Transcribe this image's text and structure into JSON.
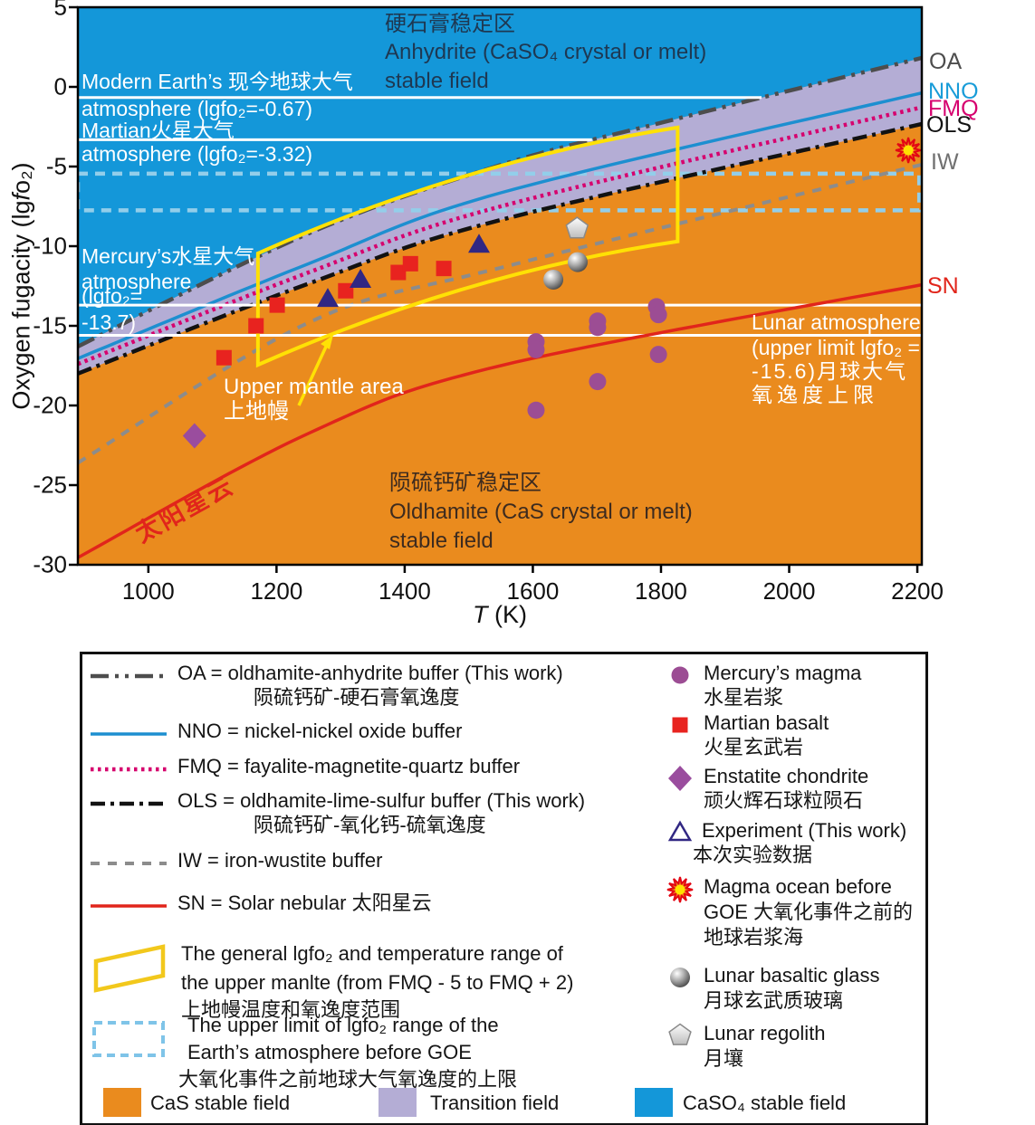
{
  "chart_data": {
    "type": "line",
    "title": "",
    "xlabel": "T",
    "xlabel_unit": "(K)",
    "ylabel_pre": "Oxygen fugacity (lg",
    "ylabel_f": "f",
    "ylabel_post": "o₂)",
    "xlim": [
      890,
      2207
    ],
    "ylim": [
      -30,
      5
    ],
    "x_ticks": [
      1000,
      1200,
      1400,
      1600,
      1800,
      2000,
      2200
    ],
    "y_ticks": [
      5,
      0,
      -5,
      -10,
      -15,
      -20,
      -25,
      -30
    ],
    "fields": [
      {
        "id": "caso4",
        "label": "CaSO₄ stable field",
        "color": "#1497D9"
      },
      {
        "id": "transition",
        "label": "Transition field",
        "color": "#B4ADD5"
      },
      {
        "id": "cas",
        "label": "CaS stable field",
        "color": "#EA8B1E"
      }
    ],
    "buffer_curves": [
      {
        "id": "OA",
        "label": "OA",
        "name": "oldhamite-anhydrite buffer",
        "color": "#4D4D4D",
        "width": 4.5,
        "dash": "20 7 4 7 4 7",
        "points": [
          [
            890,
            -16.3
          ],
          [
            1250,
            -9.2
          ],
          [
            1550,
            -4.9
          ],
          [
            1820,
            -2.05
          ],
          [
            2210,
            1.85
          ]
        ]
      },
      {
        "id": "NNO",
        "label": "NNO",
        "name": "nickel-nickel oxide buffer",
        "color": "#1D8FD0",
        "width": 3.5,
        "dash": "",
        "points": [
          [
            890,
            -17.05
          ],
          [
            1250,
            -11.1
          ],
          [
            1550,
            -6.65
          ],
          [
            2210,
            -0.35
          ]
        ]
      },
      {
        "id": "FMQ",
        "label": "FMQ",
        "name": "fayalite-magnetite-quartz buffer",
        "color": "#D6006E",
        "width": 4.5,
        "dash": "3.5 4.5",
        "points": [
          [
            890,
            -17.4
          ],
          [
            1250,
            -11.65
          ],
          [
            1550,
            -7.5
          ],
          [
            2210,
            -1.25
          ]
        ]
      },
      {
        "id": "OLS",
        "label": "OLS",
        "name": "oldhamite-lime-sulfur buffer",
        "color": "#121212",
        "width": 4.5,
        "dash": "16 6 4 6",
        "points": [
          [
            890,
            -18.0
          ],
          [
            1250,
            -12.35
          ],
          [
            1550,
            -8.35
          ],
          [
            2210,
            -2.3
          ]
        ]
      },
      {
        "id": "IW",
        "label": "IW",
        "name": "iron-wustite buffer",
        "color": "#8C8C8C",
        "width": 4,
        "dash": "10 9",
        "points": [
          [
            890,
            -23.6
          ],
          [
            1250,
            -14.8
          ],
          [
            1550,
            -11.35
          ],
          [
            2210,
            -4.85
          ]
        ]
      },
      {
        "id": "SN",
        "label": "SN",
        "name": "Solar nebular",
        "color": "#E1251B",
        "width": 3.5,
        "dash": "",
        "points": [
          [
            890,
            -29.55
          ],
          [
            1250,
            -21.75
          ],
          [
            1550,
            -17.5
          ],
          [
            2210,
            -12.4
          ]
        ]
      }
    ],
    "atmosphere_lines": [
      {
        "id": "modern",
        "lgfo2": -0.67,
        "clip_to": "OA"
      },
      {
        "id": "martian",
        "lgfo2": -3.32,
        "clip_to": "OA"
      },
      {
        "id": "mercury",
        "lgfo2": -13.7,
        "clip_to": ""
      },
      {
        "id": "lunar",
        "lgfo2": -15.6,
        "clip_to": ""
      }
    ],
    "goe_band": {
      "v_top": -5.45,
      "v_bottom": -7.75,
      "T_right": 2203,
      "color": "#93CEEA"
    },
    "upper_mantle_polygon": {
      "corners": [
        [
          1171,
          -10.45
        ],
        [
          1826,
          -2.55
        ],
        [
          1826,
          -9.7
        ],
        [
          1171,
          -17.45
        ]
      ],
      "color": "#FFE104"
    },
    "data_series": [
      {
        "id": "mercury_magma",
        "marker": "circle",
        "color": "#9C4D94",
        "points": [
          [
            1793,
            -13.8
          ],
          [
            1796,
            -14.3
          ],
          [
            1701,
            -14.7
          ],
          [
            1701,
            -15.1
          ],
          [
            1605,
            -16.0
          ],
          [
            1605,
            -16.5
          ],
          [
            1796,
            -16.8
          ],
          [
            1701,
            -18.5
          ],
          [
            1605,
            -20.3
          ]
        ]
      },
      {
        "id": "martian_basalt",
        "marker": "square",
        "color": "#E8231F",
        "points": [
          [
            1118,
            -17.0
          ],
          [
            1168,
            -15.0
          ],
          [
            1201,
            -13.7
          ],
          [
            1308,
            -12.8
          ],
          [
            1390,
            -11.65
          ],
          [
            1409,
            -11.1
          ],
          [
            1461,
            -11.4
          ]
        ]
      },
      {
        "id": "enstatite_chondrite",
        "marker": "diamond",
        "color": "#9A4D9E",
        "points": [
          [
            1072,
            -21.9
          ]
        ]
      },
      {
        "id": "experiment",
        "marker": "triangle",
        "color": "#312783",
        "points": [
          [
            1280,
            -13.3
          ],
          [
            1331,
            -12.1
          ],
          [
            1516,
            -9.9
          ]
        ]
      },
      {
        "id": "magma_ocean",
        "marker": "sun",
        "color": "#F07818",
        "points": [
          [
            2186,
            -3.98
          ]
        ]
      },
      {
        "id": "lunar_glass",
        "marker": "sphere",
        "color": "#9A9A9A",
        "points": [
          [
            1632,
            -12.1
          ],
          [
            1670,
            -11.0
          ]
        ]
      },
      {
        "id": "lunar_regolith",
        "marker": "pentagon",
        "color": "#C8C8C8",
        "points": [
          [
            1669,
            -8.9
          ]
        ]
      }
    ]
  },
  "plot": {
    "anhydrite": {
      "cn": "硬石膏稳定区",
      "en1": "Anhydrite (CaSO₄ crystal or melt)",
      "en2": "stable field"
    },
    "oldhamite": {
      "cn": "陨硫钙矿稳定区",
      "en1": "Oldhamite (CaS crystal or melt)",
      "en2": "stable field"
    },
    "modern": {
      "l1": "Modern Earth’s 现今地球大气",
      "l2": "atmosphere (lgfo₂=-0.67)"
    },
    "martian": {
      "l1": "Martian火星大气",
      "l2": "atmosphere (lgfo₂=-3.32)"
    },
    "mercury": {
      "l1": "Mercury’s水星大气",
      "l2": "atmosphere",
      "l3": "(lgfo₂=",
      "l4": "-13.7)"
    },
    "lunar": {
      "l1": "Lunar atmosphere",
      "l2": "(upper limit lgfo₂ =",
      "l3": "-15.6)月球大气",
      "l4": "氧逸度上限"
    },
    "upper_mantle": {
      "l1": "Upper mantle area",
      "l2": "上地幔"
    },
    "sn_nebula": "太阳星云",
    "right_labels": {
      "OA": "OA",
      "NNO": "NNO",
      "FMQ": "FMQ",
      "OLS": "OLS",
      "IW": "IW",
      "SN": "SN"
    }
  },
  "legend": {
    "left": [
      {
        "id": "OA",
        "text": "OA = oldhamite-anhydrite buffer (This work)",
        "cn": "陨硫钙矿-硬石膏氧逸度"
      },
      {
        "id": "NNO",
        "text": "NNO = nickel-nickel oxide buffer"
      },
      {
        "id": "FMQ",
        "text": "FMQ = fayalite-magnetite-quartz buffer"
      },
      {
        "id": "OLS",
        "text": "OLS = oldhamite-lime-sulfur buffer (This work)",
        "cn": "陨硫钙矿-氧化钙-硫氧逸度"
      },
      {
        "id": "IW",
        "text": "IW = iron-wustite buffer"
      },
      {
        "id": "SN",
        "text": "SN = Solar nebular 太阳星云"
      },
      {
        "id": "mantle",
        "l1": "The general lgfo₂ and temperature range of",
        "l2": "the upper manlte (from FMQ - 5 to FMQ + 2)",
        "l3": "上地幔温度和氧逸度范围"
      },
      {
        "id": "goe",
        "l1": "The upper limit of lgfo₂ range of the",
        "l2": "Earth’s atmosphere before GOE",
        "l3": "大氧化事件之前地球大气氧逸度的上限"
      }
    ],
    "right": [
      {
        "en": "Mercury’s magma",
        "cn": "水星岩浆"
      },
      {
        "en": "Martian basalt",
        "cn": "火星玄武岩"
      },
      {
        "en": "Enstatite chondrite",
        "cn": "顽火辉石球粒陨石"
      },
      {
        "en": "Experiment (This work)",
        "cn": "本次实验数据"
      },
      {
        "l1": "Magma ocean before",
        "l2": "GOE 大氧化事件之前的",
        "l3": "地球岩浆海"
      },
      {
        "en": "Lunar basaltic glass",
        "cn": "月球玄武质玻璃"
      },
      {
        "en": "Lunar regolith",
        "cn": "月壤"
      }
    ],
    "bottom": [
      {
        "label": "CaS stable field",
        "color": "#EA8B1E"
      },
      {
        "label": "Transition field",
        "color": "#B4ADD5"
      },
      {
        "label": "CaSO₄ stable field",
        "color": "#1497D9"
      }
    ]
  }
}
